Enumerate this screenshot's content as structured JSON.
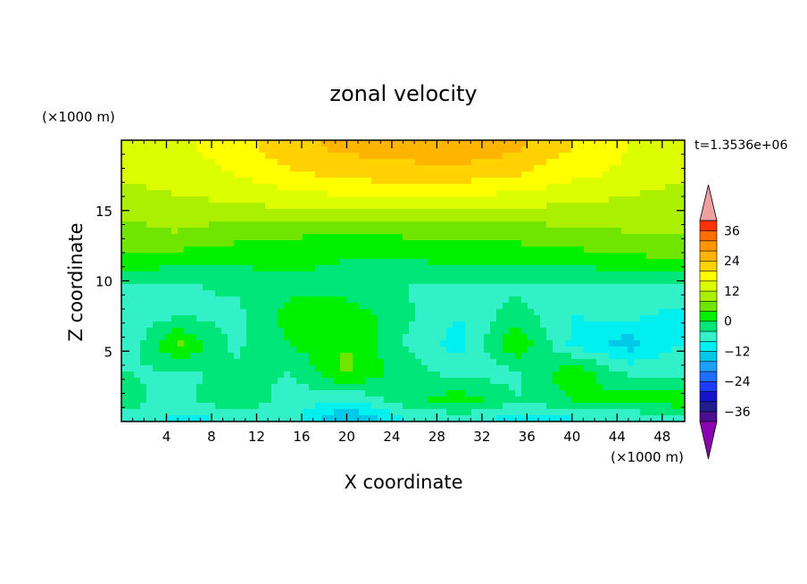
{
  "chart_data": {
    "type": "heatmap",
    "title": "zonal velocity",
    "xlabel": "X coordinate",
    "ylabel": "Z coordinate",
    "x_unit": "(×1000 m)",
    "y_unit": "(×1000 m)",
    "time_label": "t=1.3536e+06",
    "xlim": [
      0,
      50
    ],
    "ylim": [
      0,
      20
    ],
    "x_ticks": [
      4,
      8,
      12,
      16,
      20,
      24,
      28,
      32,
      36,
      40,
      44,
      48
    ],
    "y_ticks": [
      5,
      10,
      15
    ],
    "colorbar": {
      "levels": [
        -40,
        -36,
        -32,
        -28,
        -24,
        -20,
        -16,
        -12,
        -8,
        -4,
        0,
        4,
        8,
        12,
        16,
        20,
        24,
        28,
        32,
        36,
        40
      ],
      "colors": [
        "#4b0f8f",
        "#1e1e8c",
        "#1414c8",
        "#1e3cff",
        "#1e6eff",
        "#1ea0ff",
        "#00c8e6",
        "#00f0f0",
        "#32f0c8",
        "#00e678",
        "#00f000",
        "#6ee600",
        "#aaf000",
        "#dcff00",
        "#ffff00",
        "#ffd200",
        "#ffb400",
        "#ff9600",
        "#ff6e00",
        "#ff3200"
      ],
      "tick_labels": [
        "36",
        "24",
        "12",
        "0",
        "-12",
        "-24",
        "-36"
      ],
      "tick_values": [
        36,
        24,
        12,
        0,
        -12,
        -24,
        -36
      ],
      "over_color": "#f0a0a0",
      "under_color": "#8c00b4"
    },
    "field": {
      "description_rows_from_top": "z values [19.5,17.5,15.5,13.5,11.5,9.5,7.5,5.5,3.5,1.5,0.3]; x values [1,5,10,15,20,25,30,35,40,45,49]",
      "z": [
        19.5,
        17.5,
        15.5,
        13.5,
        11.5,
        9.5,
        7.5,
        5.5,
        3.5,
        1.5,
        0.3
      ],
      "x": [
        1,
        5,
        10,
        15,
        20,
        25,
        30,
        35,
        40,
        45,
        49
      ],
      "values": [
        [
          14,
          15,
          18,
          23,
          25,
          26,
          27,
          25,
          20,
          16,
          14
        ],
        [
          13,
          14,
          16,
          19,
          21,
          22,
          22,
          20,
          17,
          15,
          13
        ],
        [
          10,
          11,
          12,
          13,
          14,
          14,
          14,
          13,
          12,
          11,
          10
        ],
        [
          7,
          8,
          6,
          5,
          4,
          5,
          5,
          6,
          7,
          8,
          8
        ],
        [
          3,
          2,
          1,
          1,
          0,
          0,
          1,
          1,
          2,
          3,
          4
        ],
        [
          -6,
          -5,
          -3,
          -1,
          -2,
          -4,
          -5,
          -5,
          -6,
          -5,
          -6
        ],
        [
          -7,
          -4,
          -6,
          2,
          3,
          -3,
          -8,
          -2,
          -8,
          -7,
          -9
        ],
        [
          -6,
          5,
          -5,
          0,
          4,
          -4,
          -10,
          4,
          -9,
          -14,
          -8
        ],
        [
          -4,
          -5,
          -3,
          -4,
          5,
          -2,
          -6,
          -5,
          3,
          -5,
          -6
        ],
        [
          -3,
          -6,
          0,
          -6,
          -8,
          -2,
          3,
          -4,
          0,
          2,
          3
        ],
        [
          -5,
          -9,
          -7,
          -6,
          -16,
          -8,
          -6,
          -9,
          -8,
          -7,
          -6
        ]
      ]
    }
  }
}
